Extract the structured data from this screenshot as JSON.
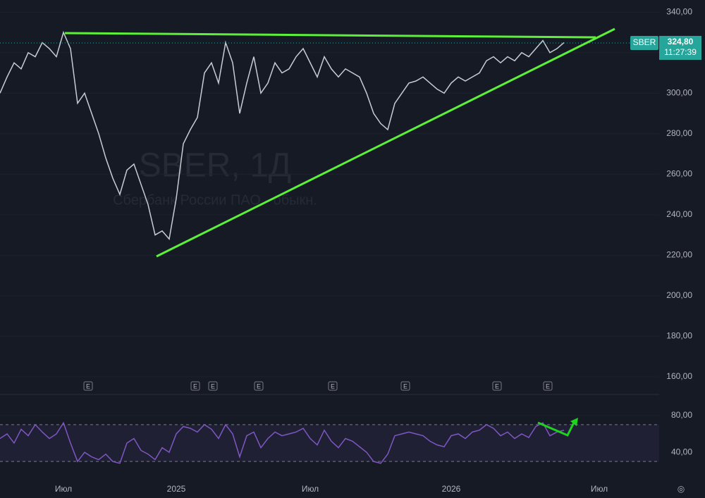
{
  "chart_data": [
    {
      "type": "line",
      "title": "SBER, 1Д",
      "subtitle": "Сбербанк России ПАО - обыкн.",
      "symbol": "SBER",
      "last_price": 324.8,
      "last_price_label": "324,80",
      "countdown": "11:27:39",
      "earnings_label": "E",
      "color": "#c8ccd4",
      "grid": true,
      "ylim": [
        153,
        346
      ],
      "yticks": [
        {
          "value": 160,
          "label": "160,00"
        },
        {
          "value": 180,
          "label": "180,00"
        },
        {
          "value": 200,
          "label": "200,00"
        },
        {
          "value": 220,
          "label": "220,00"
        },
        {
          "value": 240,
          "label": "240,00"
        },
        {
          "value": 260,
          "label": "260,00"
        },
        {
          "value": 280,
          "label": "280,00"
        },
        {
          "value": 300,
          "label": "300,00"
        },
        {
          "value": 320,
          "label": "320,00"
        },
        {
          "value": 340,
          "label": "340,00"
        }
      ],
      "values": [
        300,
        308,
        315,
        312,
        320,
        318,
        325,
        322,
        318,
        330,
        322,
        295,
        300,
        290,
        280,
        268,
        258,
        250,
        262,
        265,
        255,
        245,
        230,
        232,
        228,
        248,
        275,
        282,
        288,
        310,
        315,
        305,
        325,
        315,
        290,
        305,
        318,
        300,
        305,
        315,
        310,
        312,
        318,
        322,
        315,
        308,
        318,
        312,
        308,
        312,
        310,
        308,
        300,
        290,
        285,
        282,
        295,
        300,
        305,
        306,
        308,
        305,
        302,
        300,
        305,
        308,
        306,
        308,
        310,
        316,
        318,
        315,
        318,
        316,
        320,
        318,
        322,
        326,
        320,
        322,
        325,
        null,
        null,
        null,
        null,
        null,
        null,
        null,
        null,
        null,
        null,
        null,
        null
      ]
    },
    {
      "type": "line",
      "color": "#7e57c2",
      "grid": true,
      "ylim": [
        11,
        99
      ],
      "yticks": [
        {
          "value": 40,
          "label": "40,00"
        },
        {
          "value": 80,
          "label": "80,00"
        }
      ],
      "band": [
        30,
        70
      ],
      "categories": [
        null,
        null,
        null,
        null,
        null,
        null,
        null,
        null,
        null,
        "Июл",
        null,
        null,
        null,
        null,
        null,
        null,
        null,
        null,
        null,
        null,
        null,
        null,
        null,
        null,
        null,
        "2025",
        null,
        null,
        null,
        null,
        null,
        null,
        null,
        null,
        null,
        null,
        null,
        null,
        null,
        null,
        null,
        null,
        null,
        null,
        "Июл",
        null,
        null,
        null,
        null,
        null,
        null,
        null,
        null,
        null,
        null,
        null,
        null,
        null,
        null,
        null,
        null,
        null,
        null,
        null,
        "2026",
        null,
        null,
        null,
        null,
        null,
        null,
        null,
        null,
        null,
        null,
        null,
        null,
        null,
        null,
        null,
        null,
        null,
        null,
        null,
        null,
        "Июл",
        null,
        null,
        null,
        null,
        null,
        null,
        null
      ],
      "values": [
        55,
        60,
        50,
        65,
        58,
        70,
        62,
        55,
        60,
        72,
        50,
        30,
        40,
        35,
        32,
        38,
        30,
        28,
        50,
        55,
        42,
        38,
        32,
        45,
        40,
        60,
        68,
        66,
        62,
        70,
        65,
        55,
        70,
        60,
        35,
        58,
        62,
        45,
        55,
        62,
        58,
        60,
        62,
        66,
        55,
        48,
        64,
        52,
        45,
        55,
        52,
        46,
        40,
        30,
        28,
        38,
        58,
        60,
        62,
        60,
        58,
        52,
        48,
        46,
        58,
        60,
        55,
        62,
        64,
        70,
        66,
        58,
        62,
        55,
        60,
        56,
        68,
        72,
        58,
        62,
        64,
        null,
        null,
        null,
        null,
        null,
        null,
        null,
        null,
        null,
        null,
        null,
        null
      ]
    }
  ]
}
